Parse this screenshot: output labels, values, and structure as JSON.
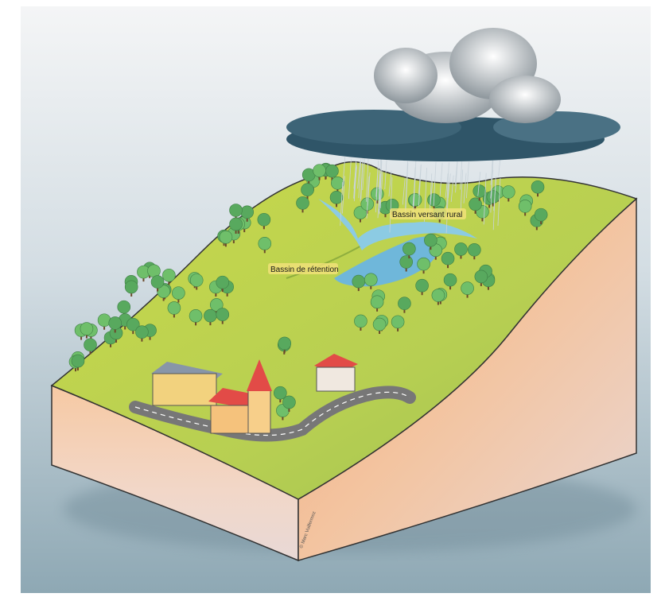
{
  "labels": [
    {
      "text": "Bassin versant rural"
    },
    {
      "text": "Bassin de rétention"
    }
  ],
  "credit": "© Marc Vuillermoz"
}
